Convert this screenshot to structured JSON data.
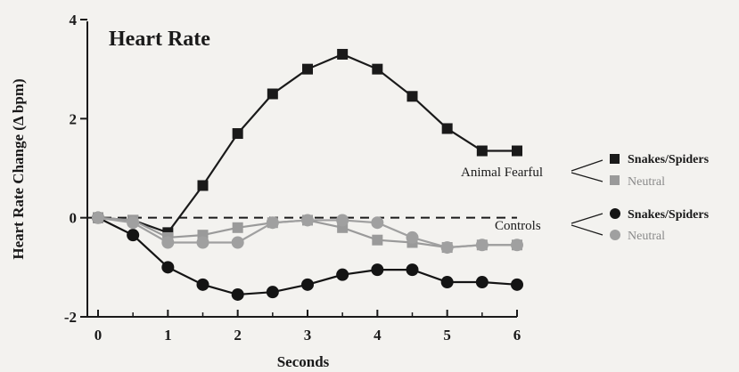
{
  "chart_data": {
    "type": "line",
    "title": "Heart Rate",
    "xlabel": "Seconds",
    "ylabel": "Heart Rate Change (Δ bpm)",
    "xlim": [
      0,
      6
    ],
    "ylim": [
      -2,
      4
    ],
    "xticks": [
      "0",
      "1",
      "2",
      "3",
      "4",
      "5",
      "6"
    ],
    "yticks": [
      "-2",
      "0",
      "2",
      "4"
    ],
    "x": [
      0,
      0.5,
      1,
      1.5,
      2,
      2.5,
      3,
      3.5,
      4,
      4.5,
      5,
      5.5,
      6
    ],
    "baseline": 0,
    "legend_groups": [
      {
        "label": "Animal Fearful",
        "entries": [
          "Snakes/Spiders",
          "Neutral"
        ]
      },
      {
        "label": "Controls",
        "entries": [
          "Snakes/Spiders",
          "Neutral"
        ]
      }
    ],
    "series": [
      {
        "group": "Animal Fearful",
        "name": "Snakes/Spiders",
        "marker": "square",
        "color": "#1a1a1a",
        "values": [
          0,
          -0.05,
          -0.3,
          0.65,
          1.7,
          2.5,
          3.0,
          3.3,
          3.0,
          2.45,
          1.8,
          1.35,
          1.35
        ]
      },
      {
        "group": "Animal Fearful",
        "name": "Neutral",
        "marker": "square",
        "color": "#9a9a9a",
        "values": [
          0,
          -0.05,
          -0.4,
          -0.35,
          -0.2,
          -0.1,
          -0.05,
          -0.2,
          -0.45,
          -0.5,
          -0.6,
          -0.55,
          -0.55
        ]
      },
      {
        "group": "Controls",
        "name": "Snakes/Spiders",
        "marker": "circle",
        "color": "#141414",
        "values": [
          0,
          -0.35,
          -1.0,
          -1.35,
          -1.55,
          -1.5,
          -1.35,
          -1.15,
          -1.05,
          -1.05,
          -1.3,
          -1.3,
          -1.35
        ]
      },
      {
        "group": "Controls",
        "name": "Neutral",
        "marker": "circle",
        "color": "#a0a0a0",
        "values": [
          0,
          -0.1,
          -0.5,
          -0.5,
          -0.5,
          -0.1,
          -0.05,
          -0.05,
          -0.1,
          -0.4,
          -0.6,
          -0.55,
          -0.55
        ]
      }
    ]
  }
}
